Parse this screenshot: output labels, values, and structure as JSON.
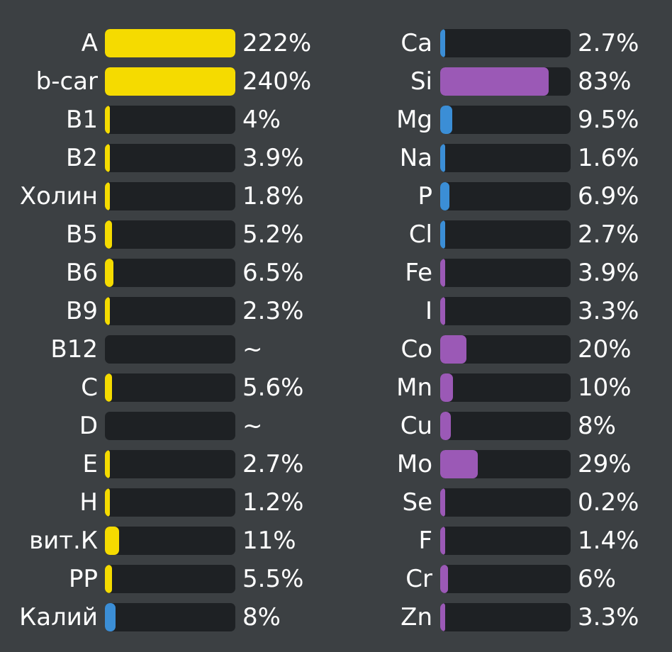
{
  "chart_data": {
    "type": "bar",
    "orientation": "horizontal",
    "colors": {
      "background": "#3c4043",
      "track": "#1e2124",
      "yellow": "#f5db00",
      "blue": "#3b8ed6",
      "purple": "#9b59b6",
      "text": "#ffffff"
    },
    "columns": [
      {
        "rows": [
          {
            "label": "A",
            "value": 222,
            "display": "222%",
            "color": "yellow"
          },
          {
            "label": "b-car",
            "value": 240,
            "display": "240%",
            "color": "yellow"
          },
          {
            "label": "B1",
            "value": 4,
            "display": "4%",
            "color": "yellow"
          },
          {
            "label": "B2",
            "value": 3.9,
            "display": "3.9%",
            "color": "yellow"
          },
          {
            "label": "Холин",
            "value": 1.8,
            "display": "1.8%",
            "color": "yellow"
          },
          {
            "label": "B5",
            "value": 5.2,
            "display": "5.2%",
            "color": "yellow"
          },
          {
            "label": "B6",
            "value": 6.5,
            "display": "6.5%",
            "color": "yellow"
          },
          {
            "label": "B9",
            "value": 2.3,
            "display": "2.3%",
            "color": "yellow"
          },
          {
            "label": "B12",
            "value": null,
            "display": "~",
            "color": "yellow"
          },
          {
            "label": "C",
            "value": 5.6,
            "display": "5.6%",
            "color": "yellow"
          },
          {
            "label": "D",
            "value": null,
            "display": "~",
            "color": "yellow"
          },
          {
            "label": "E",
            "value": 2.7,
            "display": "2.7%",
            "color": "yellow"
          },
          {
            "label": "H",
            "value": 1.2,
            "display": "1.2%",
            "color": "yellow"
          },
          {
            "label": "вит.К",
            "value": 11,
            "display": "11%",
            "color": "yellow"
          },
          {
            "label": "PP",
            "value": 5.5,
            "display": "5.5%",
            "color": "yellow"
          },
          {
            "label": "Калий",
            "value": 8,
            "display": "8%",
            "color": "blue"
          }
        ]
      },
      {
        "rows": [
          {
            "label": "Ca",
            "value": 2.7,
            "display": "2.7%",
            "color": "blue"
          },
          {
            "label": "Si",
            "value": 83,
            "display": "83%",
            "color": "purple"
          },
          {
            "label": "Mg",
            "value": 9.5,
            "display": "9.5%",
            "color": "blue"
          },
          {
            "label": "Na",
            "value": 1.6,
            "display": "1.6%",
            "color": "blue"
          },
          {
            "label": "P",
            "value": 6.9,
            "display": "6.9%",
            "color": "blue"
          },
          {
            "label": "Cl",
            "value": 2.7,
            "display": "2.7%",
            "color": "blue"
          },
          {
            "label": "Fe",
            "value": 3.9,
            "display": "3.9%",
            "color": "purple"
          },
          {
            "label": "I",
            "value": 3.3,
            "display": "3.3%",
            "color": "purple"
          },
          {
            "label": "Co",
            "value": 20,
            "display": "20%",
            "color": "purple"
          },
          {
            "label": "Mn",
            "value": 10,
            "display": "10%",
            "color": "purple"
          },
          {
            "label": "Cu",
            "value": 8,
            "display": "8%",
            "color": "purple"
          },
          {
            "label": "Mo",
            "value": 29,
            "display": "29%",
            "color": "purple"
          },
          {
            "label": "Se",
            "value": 0.2,
            "display": "0.2%",
            "color": "purple"
          },
          {
            "label": "F",
            "value": 1.4,
            "display": "1.4%",
            "color": "purple"
          },
          {
            "label": "Cr",
            "value": 6,
            "display": "6%",
            "color": "purple"
          },
          {
            "label": "Zn",
            "value": 3.3,
            "display": "3.3%",
            "color": "purple"
          }
        ]
      }
    ]
  }
}
